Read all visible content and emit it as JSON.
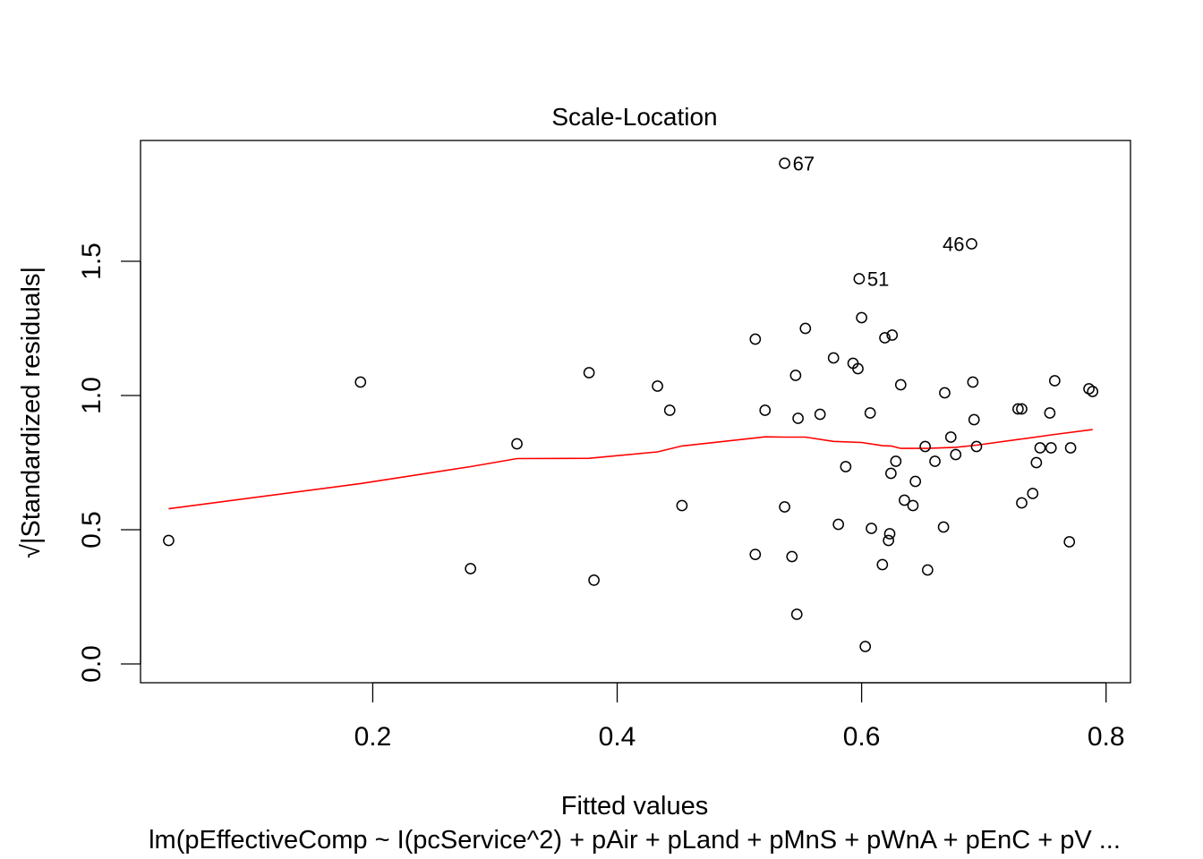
{
  "chart_data": {
    "type": "scatter",
    "title": "Scale-Location",
    "xlabel": "Fitted values",
    "ylabel": "√|Standardized residuals|",
    "ylabel_radical": "√",
    "ylabel_text": "Standardized residuals",
    "subtitle": "lm(pEffectiveComp ~ I(pcService^2) + pAir + pLand + pMnS + pWnA + pEnC + pV ...",
    "xlim": [
      0.01,
      0.82
    ],
    "ylim": [
      -0.07,
      1.95
    ],
    "x_ticks": [
      {
        "value": 0.2,
        "label": "0.2"
      },
      {
        "value": 0.4,
        "label": "0.4"
      },
      {
        "value": 0.6,
        "label": "0.6"
      },
      {
        "value": 0.8,
        "label": "0.8"
      }
    ],
    "y_ticks": [
      {
        "value": 0.0,
        "label": "0.0"
      },
      {
        "value": 0.5,
        "label": "0.5"
      },
      {
        "value": 1.0,
        "label": "1.0"
      },
      {
        "value": 1.5,
        "label": "1.5"
      }
    ],
    "grid": false,
    "smoother_color": "#ff0000",
    "point_color": "#000000",
    "points": [
      {
        "x": 0.033,
        "y": 0.46
      },
      {
        "x": 0.19,
        "y": 1.05
      },
      {
        "x": 0.28,
        "y": 0.355
      },
      {
        "x": 0.318,
        "y": 0.82
      },
      {
        "x": 0.377,
        "y": 1.085
      },
      {
        "x": 0.381,
        "y": 0.312
      },
      {
        "x": 0.433,
        "y": 1.035
      },
      {
        "x": 0.443,
        "y": 0.945
      },
      {
        "x": 0.453,
        "y": 0.59
      },
      {
        "x": 0.513,
        "y": 0.408
      },
      {
        "x": 0.513,
        "y": 1.21
      },
      {
        "x": 0.521,
        "y": 0.945
      },
      {
        "x": 0.537,
        "y": 0.585
      },
      {
        "x": 0.537,
        "y": 1.865,
        "label": "67"
      },
      {
        "x": 0.543,
        "y": 0.4
      },
      {
        "x": 0.546,
        "y": 1.075
      },
      {
        "x": 0.547,
        "y": 0.185
      },
      {
        "x": 0.548,
        "y": 0.915
      },
      {
        "x": 0.554,
        "y": 1.25
      },
      {
        "x": 0.566,
        "y": 0.93
      },
      {
        "x": 0.577,
        "y": 1.14
      },
      {
        "x": 0.581,
        "y": 0.52
      },
      {
        "x": 0.587,
        "y": 0.735
      },
      {
        "x": 0.593,
        "y": 1.12
      },
      {
        "x": 0.597,
        "y": 1.1
      },
      {
        "x": 0.598,
        "y": 1.435,
        "label": "51"
      },
      {
        "x": 0.6,
        "y": 1.29
      },
      {
        "x": 0.603,
        "y": 0.065
      },
      {
        "x": 0.607,
        "y": 0.935
      },
      {
        "x": 0.608,
        "y": 0.505
      },
      {
        "x": 0.617,
        "y": 0.37
      },
      {
        "x": 0.619,
        "y": 1.215
      },
      {
        "x": 0.622,
        "y": 0.46
      },
      {
        "x": 0.623,
        "y": 0.485
      },
      {
        "x": 0.624,
        "y": 0.71
      },
      {
        "x": 0.625,
        "y": 1.225
      },
      {
        "x": 0.628,
        "y": 0.755
      },
      {
        "x": 0.632,
        "y": 1.04
      },
      {
        "x": 0.635,
        "y": 0.61
      },
      {
        "x": 0.642,
        "y": 0.59
      },
      {
        "x": 0.644,
        "y": 0.68
      },
      {
        "x": 0.652,
        "y": 0.81
      },
      {
        "x": 0.654,
        "y": 0.35
      },
      {
        "x": 0.66,
        "y": 0.755
      },
      {
        "x": 0.667,
        "y": 0.51
      },
      {
        "x": 0.668,
        "y": 1.01
      },
      {
        "x": 0.673,
        "y": 0.845
      },
      {
        "x": 0.677,
        "y": 0.78
      },
      {
        "x": 0.69,
        "y": 1.565,
        "label": "46"
      },
      {
        "x": 0.691,
        "y": 1.05
      },
      {
        "x": 0.692,
        "y": 0.91
      },
      {
        "x": 0.694,
        "y": 0.81
      },
      {
        "x": 0.728,
        "y": 0.95
      },
      {
        "x": 0.731,
        "y": 0.95
      },
      {
        "x": 0.731,
        "y": 0.6
      },
      {
        "x": 0.74,
        "y": 0.635
      },
      {
        "x": 0.743,
        "y": 0.75
      },
      {
        "x": 0.746,
        "y": 0.805
      },
      {
        "x": 0.754,
        "y": 0.935
      },
      {
        "x": 0.755,
        "y": 0.805
      },
      {
        "x": 0.758,
        "y": 1.055
      },
      {
        "x": 0.77,
        "y": 0.455
      },
      {
        "x": 0.771,
        "y": 0.805
      },
      {
        "x": 0.786,
        "y": 1.025
      },
      {
        "x": 0.789,
        "y": 1.015
      }
    ],
    "smoother": [
      {
        "x": 0.033,
        "y": 0.578
      },
      {
        "x": 0.19,
        "y": 0.672
      },
      {
        "x": 0.28,
        "y": 0.735
      },
      {
        "x": 0.318,
        "y": 0.765
      },
      {
        "x": 0.377,
        "y": 0.766
      },
      {
        "x": 0.433,
        "y": 0.79
      },
      {
        "x": 0.453,
        "y": 0.812
      },
      {
        "x": 0.513,
        "y": 0.842
      },
      {
        "x": 0.521,
        "y": 0.846
      },
      {
        "x": 0.537,
        "y": 0.845
      },
      {
        "x": 0.554,
        "y": 0.845
      },
      {
        "x": 0.577,
        "y": 0.829
      },
      {
        "x": 0.6,
        "y": 0.825
      },
      {
        "x": 0.617,
        "y": 0.813
      },
      {
        "x": 0.624,
        "y": 0.812
      },
      {
        "x": 0.632,
        "y": 0.803
      },
      {
        "x": 0.654,
        "y": 0.803
      },
      {
        "x": 0.677,
        "y": 0.807
      },
      {
        "x": 0.694,
        "y": 0.815
      },
      {
        "x": 0.731,
        "y": 0.838
      },
      {
        "x": 0.758,
        "y": 0.855
      },
      {
        "x": 0.789,
        "y": 0.873
      }
    ]
  }
}
